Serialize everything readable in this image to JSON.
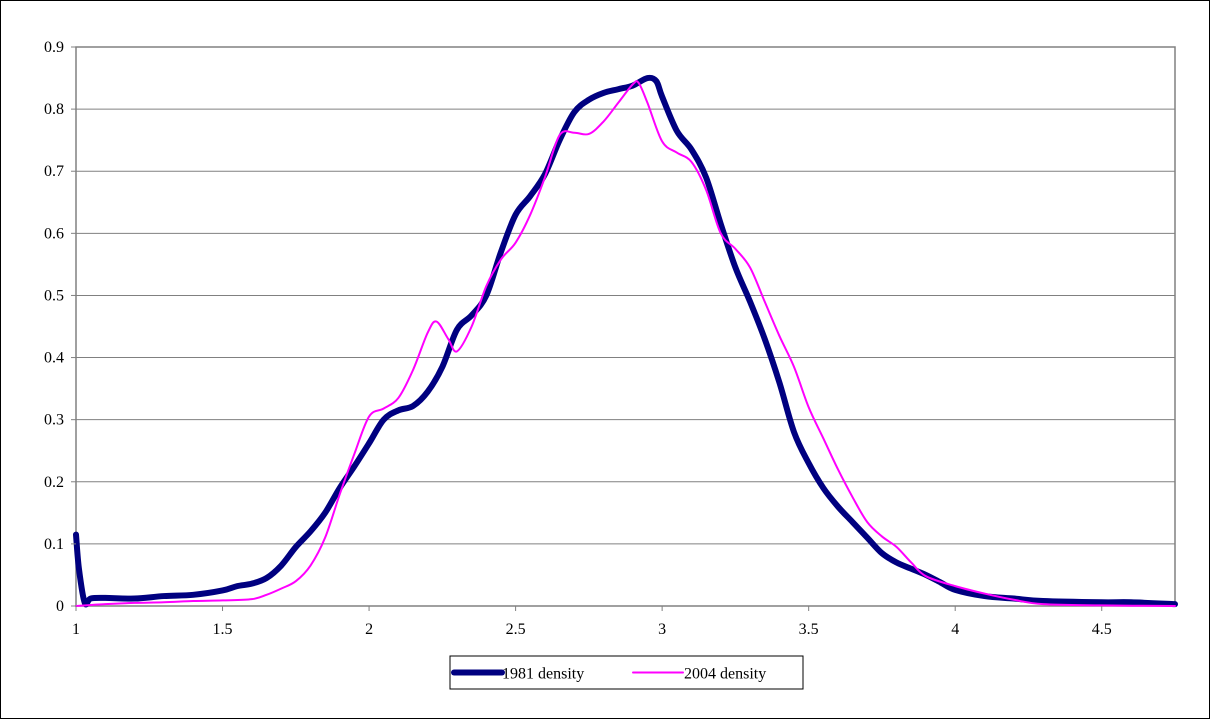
{
  "chart_data": {
    "type": "line",
    "title": "",
    "xlabel": "",
    "ylabel": "",
    "xlim": [
      1,
      4.75
    ],
    "ylim": [
      0,
      0.9
    ],
    "x_ticks": [
      1,
      1.5,
      2,
      2.5,
      3,
      3.5,
      4,
      4.5
    ],
    "x_tick_labels": [
      "1",
      "1.5",
      "2",
      "2.5",
      "3",
      "3.5",
      "4",
      "4.5"
    ],
    "y_ticks": [
      0,
      0.1,
      0.2,
      0.3,
      0.4,
      0.5,
      0.6,
      0.7,
      0.8,
      0.9
    ],
    "y_tick_labels": [
      "0",
      "0.1",
      "0.2",
      "0.3",
      "0.4",
      "0.5",
      "0.6",
      "0.7",
      "0.8",
      "0.9"
    ],
    "grid": true,
    "legend_position": "bottom",
    "colors": {
      "series_1981": "#000080",
      "series_2004": "#FF00FF",
      "gridline": "#808080",
      "plot_border": "#808080"
    },
    "series": [
      {
        "name": "1981 density",
        "points": [
          [
            1.0,
            0.115
          ],
          [
            1.01,
            0.06
          ],
          [
            1.03,
            0.005
          ],
          [
            1.05,
            0.012
          ],
          [
            1.1,
            0.013
          ],
          [
            1.2,
            0.012
          ],
          [
            1.3,
            0.016
          ],
          [
            1.4,
            0.018
          ],
          [
            1.5,
            0.025
          ],
          [
            1.55,
            0.032
          ],
          [
            1.6,
            0.036
          ],
          [
            1.65,
            0.045
          ],
          [
            1.7,
            0.065
          ],
          [
            1.75,
            0.095
          ],
          [
            1.8,
            0.12
          ],
          [
            1.85,
            0.15
          ],
          [
            1.9,
            0.19
          ],
          [
            1.95,
            0.225
          ],
          [
            2.0,
            0.262
          ],
          [
            2.05,
            0.3
          ],
          [
            2.1,
            0.315
          ],
          [
            2.15,
            0.322
          ],
          [
            2.2,
            0.345
          ],
          [
            2.25,
            0.385
          ],
          [
            2.3,
            0.445
          ],
          [
            2.35,
            0.468
          ],
          [
            2.4,
            0.5
          ],
          [
            2.45,
            0.57
          ],
          [
            2.5,
            0.63
          ],
          [
            2.55,
            0.66
          ],
          [
            2.6,
            0.695
          ],
          [
            2.65,
            0.75
          ],
          [
            2.7,
            0.795
          ],
          [
            2.75,
            0.815
          ],
          [
            2.8,
            0.826
          ],
          [
            2.85,
            0.832
          ],
          [
            2.9,
            0.838
          ],
          [
            2.95,
            0.85
          ],
          [
            2.98,
            0.845
          ],
          [
            3.0,
            0.82
          ],
          [
            3.05,
            0.765
          ],
          [
            3.1,
            0.735
          ],
          [
            3.15,
            0.69
          ],
          [
            3.2,
            0.615
          ],
          [
            3.25,
            0.545
          ],
          [
            3.3,
            0.49
          ],
          [
            3.35,
            0.43
          ],
          [
            3.4,
            0.36
          ],
          [
            3.45,
            0.28
          ],
          [
            3.5,
            0.23
          ],
          [
            3.55,
            0.19
          ],
          [
            3.6,
            0.16
          ],
          [
            3.65,
            0.135
          ],
          [
            3.7,
            0.11
          ],
          [
            3.75,
            0.085
          ],
          [
            3.8,
            0.07
          ],
          [
            3.85,
            0.06
          ],
          [
            3.9,
            0.05
          ],
          [
            3.95,
            0.038
          ],
          [
            4.0,
            0.026
          ],
          [
            4.1,
            0.016
          ],
          [
            4.2,
            0.012
          ],
          [
            4.3,
            0.008
          ],
          [
            4.5,
            0.006
          ],
          [
            4.6,
            0.006
          ],
          [
            4.75,
            0.003
          ]
        ]
      },
      {
        "name": "2004 density",
        "points": [
          [
            1.0,
            0.0
          ],
          [
            1.1,
            0.003
          ],
          [
            1.2,
            0.005
          ],
          [
            1.3,
            0.006
          ],
          [
            1.4,
            0.008
          ],
          [
            1.5,
            0.009
          ],
          [
            1.6,
            0.011
          ],
          [
            1.65,
            0.018
          ],
          [
            1.7,
            0.028
          ],
          [
            1.75,
            0.04
          ],
          [
            1.8,
            0.065
          ],
          [
            1.85,
            0.11
          ],
          [
            1.9,
            0.18
          ],
          [
            1.95,
            0.245
          ],
          [
            2.0,
            0.305
          ],
          [
            2.05,
            0.318
          ],
          [
            2.1,
            0.335
          ],
          [
            2.15,
            0.38
          ],
          [
            2.2,
            0.44
          ],
          [
            2.23,
            0.458
          ],
          [
            2.27,
            0.43
          ],
          [
            2.3,
            0.41
          ],
          [
            2.35,
            0.45
          ],
          [
            2.4,
            0.515
          ],
          [
            2.45,
            0.558
          ],
          [
            2.5,
            0.585
          ],
          [
            2.55,
            0.63
          ],
          [
            2.6,
            0.69
          ],
          [
            2.65,
            0.758
          ],
          [
            2.7,
            0.762
          ],
          [
            2.75,
            0.76
          ],
          [
            2.8,
            0.78
          ],
          [
            2.85,
            0.81
          ],
          [
            2.9,
            0.84
          ],
          [
            2.92,
            0.842
          ],
          [
            2.95,
            0.81
          ],
          [
            3.0,
            0.748
          ],
          [
            3.05,
            0.73
          ],
          [
            3.1,
            0.715
          ],
          [
            3.15,
            0.67
          ],
          [
            3.2,
            0.6
          ],
          [
            3.25,
            0.575
          ],
          [
            3.3,
            0.545
          ],
          [
            3.35,
            0.49
          ],
          [
            3.4,
            0.435
          ],
          [
            3.45,
            0.385
          ],
          [
            3.5,
            0.32
          ],
          [
            3.55,
            0.27
          ],
          [
            3.6,
            0.22
          ],
          [
            3.65,
            0.175
          ],
          [
            3.7,
            0.135
          ],
          [
            3.75,
            0.112
          ],
          [
            3.8,
            0.095
          ],
          [
            3.85,
            0.07
          ],
          [
            3.9,
            0.048
          ],
          [
            4.0,
            0.032
          ],
          [
            4.1,
            0.02
          ],
          [
            4.2,
            0.01
          ],
          [
            4.3,
            0.003
          ],
          [
            4.5,
            0.001
          ],
          [
            4.75,
            0.0
          ]
        ]
      }
    ]
  }
}
